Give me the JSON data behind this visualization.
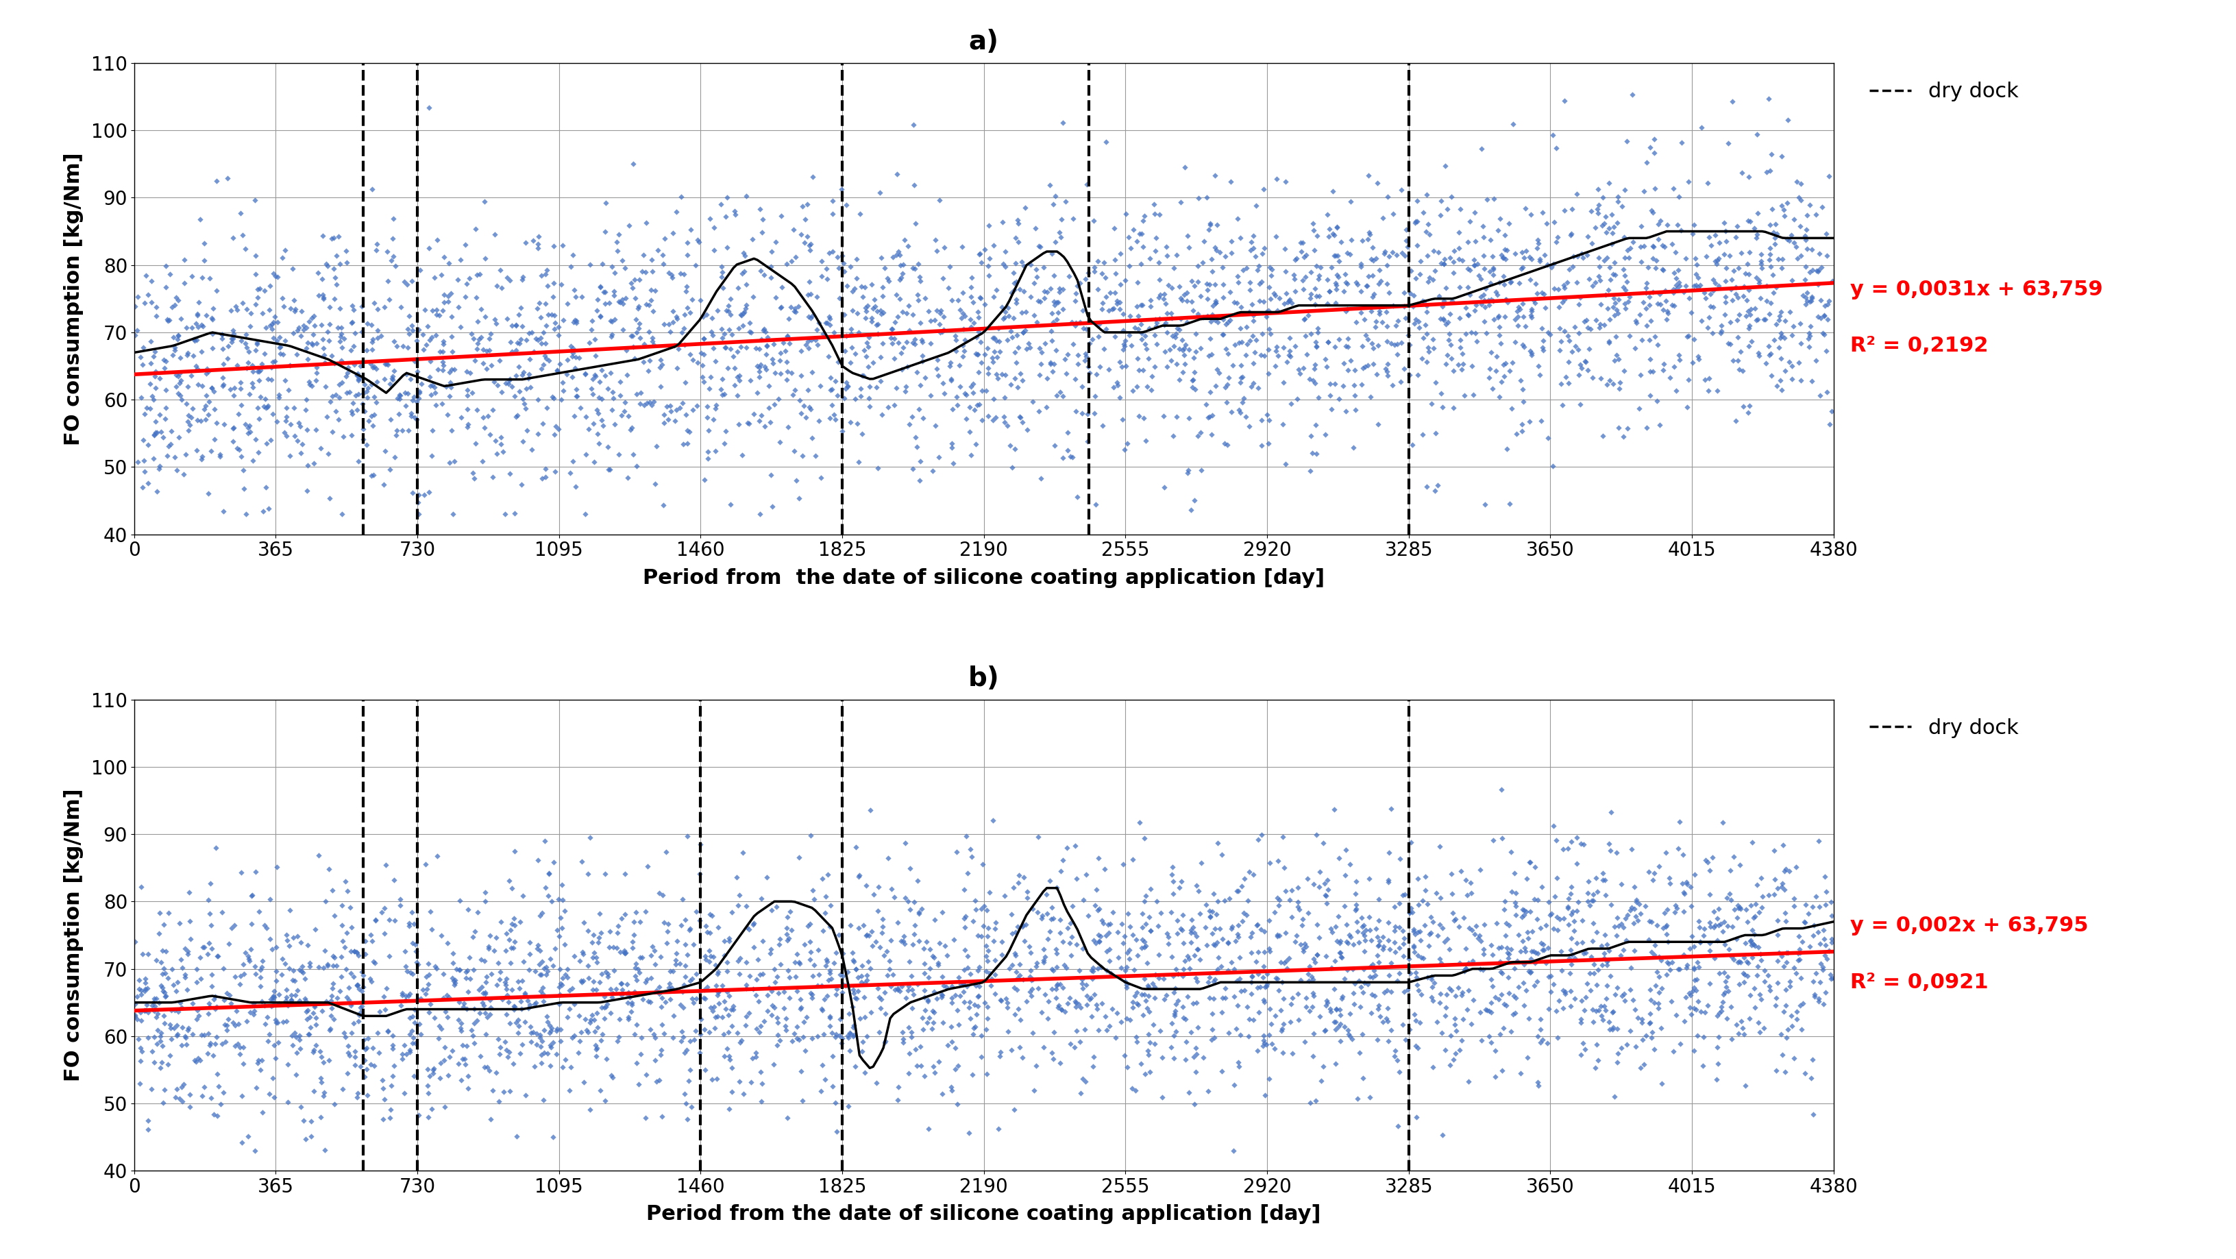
{
  "title_a": "a)",
  "title_b": "b)",
  "xlabel_a": "Period from  the date of silicone coating application [day]",
  "xlabel_b": "Period from the date of silicone coating application [day]",
  "ylabel": "FO consumption [kg/Nm]",
  "xlim": [
    0,
    4380
  ],
  "ylim": [
    40,
    110
  ],
  "xticks": [
    0,
    365,
    730,
    1095,
    1460,
    1825,
    2190,
    2555,
    2920,
    3285,
    3650,
    4015,
    4380
  ],
  "yticks": [
    40,
    50,
    60,
    70,
    80,
    90,
    100,
    110
  ],
  "dry_dock_lines_a": [
    590,
    730,
    1825,
    2460,
    3285
  ],
  "dry_dock_lines_b": [
    590,
    730,
    1460,
    1825,
    3285
  ],
  "trend_a": {
    "slope": 0.0031,
    "intercept": 63.759,
    "label_line1": "y = 0,0031x + 63,759",
    "label_line2": "R² = 0,2192"
  },
  "trend_b": {
    "slope": 0.002,
    "intercept": 63.795,
    "label_line1": "y = 0,002x + 63,795",
    "label_line2": "R² = 0,0921"
  },
  "scatter_color": "#4472C4",
  "trend_color": "#FF0000",
  "moving_avg_color": "#000000",
  "dashed_line_color": "#000000",
  "scatter_size": 18,
  "scatter_alpha": 0.75,
  "random_seed_a": 42,
  "random_seed_b": 123,
  "n_points": 3000,
  "background_color": "#ffffff",
  "grid_color": "#999999",
  "title_fontsize": 28,
  "label_fontsize": 22,
  "tick_fontsize": 20,
  "legend_fontsize": 22,
  "annotation_fontsize": 22,
  "moving_avg_linewidth": 2.5,
  "trend_linewidth": 4.0,
  "dashed_linewidth": 3.0,
  "ma_window_a": [
    [
      0,
      67
    ],
    [
      100,
      68
    ],
    [
      200,
      70
    ],
    [
      300,
      69
    ],
    [
      400,
      68
    ],
    [
      500,
      66
    ],
    [
      600,
      63
    ],
    [
      650,
      61
    ],
    [
      700,
      64
    ],
    [
      750,
      63
    ],
    [
      800,
      62
    ],
    [
      900,
      63
    ],
    [
      1000,
      63
    ],
    [
      1100,
      64
    ],
    [
      1200,
      65
    ],
    [
      1300,
      66
    ],
    [
      1400,
      68
    ],
    [
      1460,
      72
    ],
    [
      1500,
      76
    ],
    [
      1550,
      80
    ],
    [
      1600,
      81
    ],
    [
      1650,
      79
    ],
    [
      1700,
      77
    ],
    [
      1750,
      73
    ],
    [
      1800,
      68
    ],
    [
      1825,
      65
    ],
    [
      1850,
      64
    ],
    [
      1900,
      63
    ],
    [
      1950,
      64
    ],
    [
      2000,
      65
    ],
    [
      2100,
      67
    ],
    [
      2190,
      70
    ],
    [
      2250,
      74
    ],
    [
      2300,
      80
    ],
    [
      2350,
      82
    ],
    [
      2380,
      82
    ],
    [
      2400,
      81
    ],
    [
      2430,
      78
    ],
    [
      2460,
      72
    ],
    [
      2500,
      70
    ],
    [
      2550,
      70
    ],
    [
      2600,
      70
    ],
    [
      2650,
      71
    ],
    [
      2700,
      71
    ],
    [
      2750,
      72
    ],
    [
      2800,
      72
    ],
    [
      2850,
      73
    ],
    [
      2900,
      73
    ],
    [
      2950,
      73
    ],
    [
      3000,
      74
    ],
    [
      3050,
      74
    ],
    [
      3100,
      74
    ],
    [
      3150,
      74
    ],
    [
      3200,
      74
    ],
    [
      3250,
      74
    ],
    [
      3285,
      74
    ],
    [
      3350,
      75
    ],
    [
      3400,
      75
    ],
    [
      3450,
      76
    ],
    [
      3500,
      77
    ],
    [
      3550,
      78
    ],
    [
      3600,
      79
    ],
    [
      3650,
      80
    ],
    [
      3700,
      81
    ],
    [
      3750,
      82
    ],
    [
      3800,
      83
    ],
    [
      3850,
      84
    ],
    [
      3900,
      84
    ],
    [
      3950,
      85
    ],
    [
      4000,
      85
    ],
    [
      4050,
      85
    ],
    [
      4100,
      85
    ],
    [
      4150,
      85
    ],
    [
      4200,
      85
    ],
    [
      4250,
      84
    ],
    [
      4300,
      84
    ],
    [
      4380,
      84
    ]
  ],
  "ma_window_b": [
    [
      0,
      65
    ],
    [
      100,
      65
    ],
    [
      200,
      66
    ],
    [
      300,
      65
    ],
    [
      400,
      65
    ],
    [
      500,
      65
    ],
    [
      590,
      63
    ],
    [
      650,
      63
    ],
    [
      700,
      64
    ],
    [
      730,
      64
    ],
    [
      800,
      64
    ],
    [
      900,
      64
    ],
    [
      1000,
      64
    ],
    [
      1100,
      65
    ],
    [
      1200,
      65
    ],
    [
      1300,
      66
    ],
    [
      1400,
      67
    ],
    [
      1460,
      68
    ],
    [
      1500,
      70
    ],
    [
      1550,
      74
    ],
    [
      1600,
      78
    ],
    [
      1650,
      80
    ],
    [
      1700,
      80
    ],
    [
      1750,
      79
    ],
    [
      1800,
      76
    ],
    [
      1825,
      72
    ],
    [
      1850,
      65
    ],
    [
      1870,
      57
    ],
    [
      1900,
      55
    ],
    [
      1930,
      58
    ],
    [
      1950,
      63
    ],
    [
      2000,
      65
    ],
    [
      2050,
      66
    ],
    [
      2100,
      67
    ],
    [
      2190,
      68
    ],
    [
      2250,
      72
    ],
    [
      2300,
      78
    ],
    [
      2350,
      82
    ],
    [
      2380,
      82
    ],
    [
      2400,
      79
    ],
    [
      2430,
      76
    ],
    [
      2460,
      72
    ],
    [
      2500,
      70
    ],
    [
      2555,
      68
    ],
    [
      2600,
      67
    ],
    [
      2650,
      67
    ],
    [
      2700,
      67
    ],
    [
      2750,
      67
    ],
    [
      2800,
      68
    ],
    [
      2850,
      68
    ],
    [
      2900,
      68
    ],
    [
      2950,
      68
    ],
    [
      3000,
      68
    ],
    [
      3050,
      68
    ],
    [
      3100,
      68
    ],
    [
      3150,
      68
    ],
    [
      3200,
      68
    ],
    [
      3250,
      68
    ],
    [
      3285,
      68
    ],
    [
      3350,
      69
    ],
    [
      3400,
      69
    ],
    [
      3450,
      70
    ],
    [
      3500,
      70
    ],
    [
      3550,
      71
    ],
    [
      3600,
      71
    ],
    [
      3650,
      72
    ],
    [
      3700,
      72
    ],
    [
      3750,
      73
    ],
    [
      3800,
      73
    ],
    [
      3850,
      74
    ],
    [
      3900,
      74
    ],
    [
      3950,
      74
    ],
    [
      4000,
      74
    ],
    [
      4050,
      74
    ],
    [
      4100,
      74
    ],
    [
      4150,
      75
    ],
    [
      4200,
      75
    ],
    [
      4250,
      76
    ],
    [
      4300,
      76
    ],
    [
      4380,
      77
    ]
  ]
}
